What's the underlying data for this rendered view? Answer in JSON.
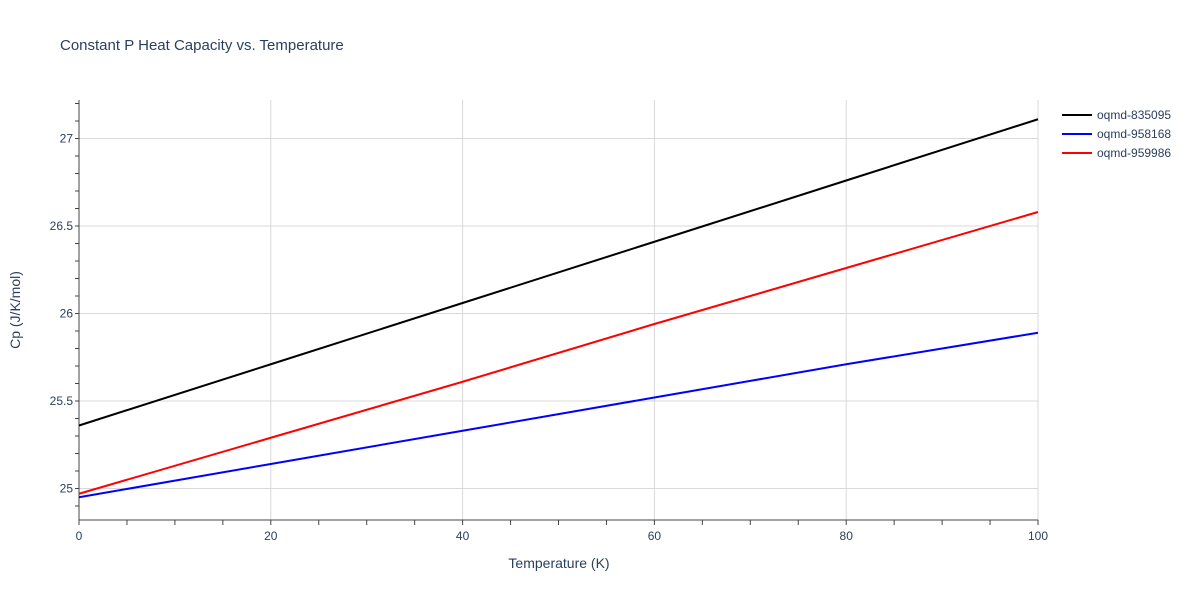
{
  "chart_data": {
    "type": "line",
    "title": "Constant P Heat Capacity vs. Temperature",
    "xlabel": "Temperature (K)",
    "ylabel": "Cp (J/K/mol)",
    "xlim": [
      0,
      100
    ],
    "ylim": [
      24.82,
      27.22
    ],
    "x_ticks": [
      0,
      20,
      40,
      60,
      80,
      100
    ],
    "x_tick_labels": [
      "0",
      "20",
      "40",
      "60",
      "80",
      "100"
    ],
    "y_ticks": [
      25,
      25.5,
      26,
      26.5,
      27
    ],
    "y_tick_labels": [
      "25",
      "25.5",
      "26",
      "26.5",
      "27"
    ],
    "grid": true,
    "legend_position": "top-right",
    "series": [
      {
        "name": "oqmd-835095",
        "color": "#000000",
        "x": [
          0,
          20,
          40,
          60,
          80,
          100
        ],
        "y": [
          25.36,
          25.71,
          26.06,
          26.41,
          26.76,
          27.11
        ]
      },
      {
        "name": "oqmd-958168",
        "color": "#0000ff",
        "x": [
          0,
          20,
          40,
          60,
          80,
          100
        ],
        "y": [
          24.95,
          25.14,
          25.33,
          25.52,
          25.71,
          25.89
        ]
      },
      {
        "name": "oqmd-959986",
        "color": "#ff0000",
        "x": [
          0,
          20,
          40,
          60,
          80,
          100
        ],
        "y": [
          24.97,
          25.29,
          25.61,
          25.94,
          26.26,
          26.58
        ]
      }
    ]
  }
}
